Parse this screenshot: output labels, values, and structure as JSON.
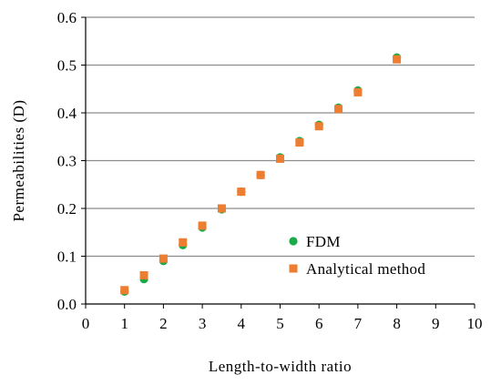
{
  "chart_data": {
    "type": "scatter",
    "xlabel": "Length-to-width ratio",
    "ylabel": "Permeabilities (D)",
    "xlim": [
      0,
      10
    ],
    "ylim": [
      0,
      0.6
    ],
    "x_ticks": [
      "0",
      "1",
      "2",
      "3",
      "4",
      "5",
      "6",
      "7",
      "8",
      "9",
      "10"
    ],
    "y_ticks": [
      "0.0",
      "0.1",
      "0.2",
      "0.3",
      "0.4",
      "0.5",
      "0.6"
    ],
    "grid": "horizontal",
    "legend_position": "bottom-right",
    "series": [
      {
        "name": "FDM",
        "marker": "circle",
        "color": "#1aab48",
        "x": [
          1,
          1.5,
          2,
          2.5,
          3,
          3.5,
          4,
          4.5,
          5,
          5.5,
          6,
          6.5,
          7,
          8
        ],
        "y": [
          0.026,
          0.052,
          0.09,
          0.123,
          0.16,
          0.198,
          0.235,
          0.27,
          0.307,
          0.341,
          0.375,
          0.411,
          0.447,
          0.516
        ]
      },
      {
        "name": "Analytical method",
        "marker": "square",
        "color": "#ed7d31",
        "x": [
          1,
          1.5,
          2,
          2.5,
          3,
          3.5,
          4,
          4.5,
          5,
          5.5,
          6,
          6.5,
          7,
          8
        ],
        "y": [
          0.029,
          0.06,
          0.095,
          0.129,
          0.164,
          0.2,
          0.235,
          0.27,
          0.304,
          0.338,
          0.372,
          0.408,
          0.443,
          0.512
        ]
      }
    ]
  }
}
